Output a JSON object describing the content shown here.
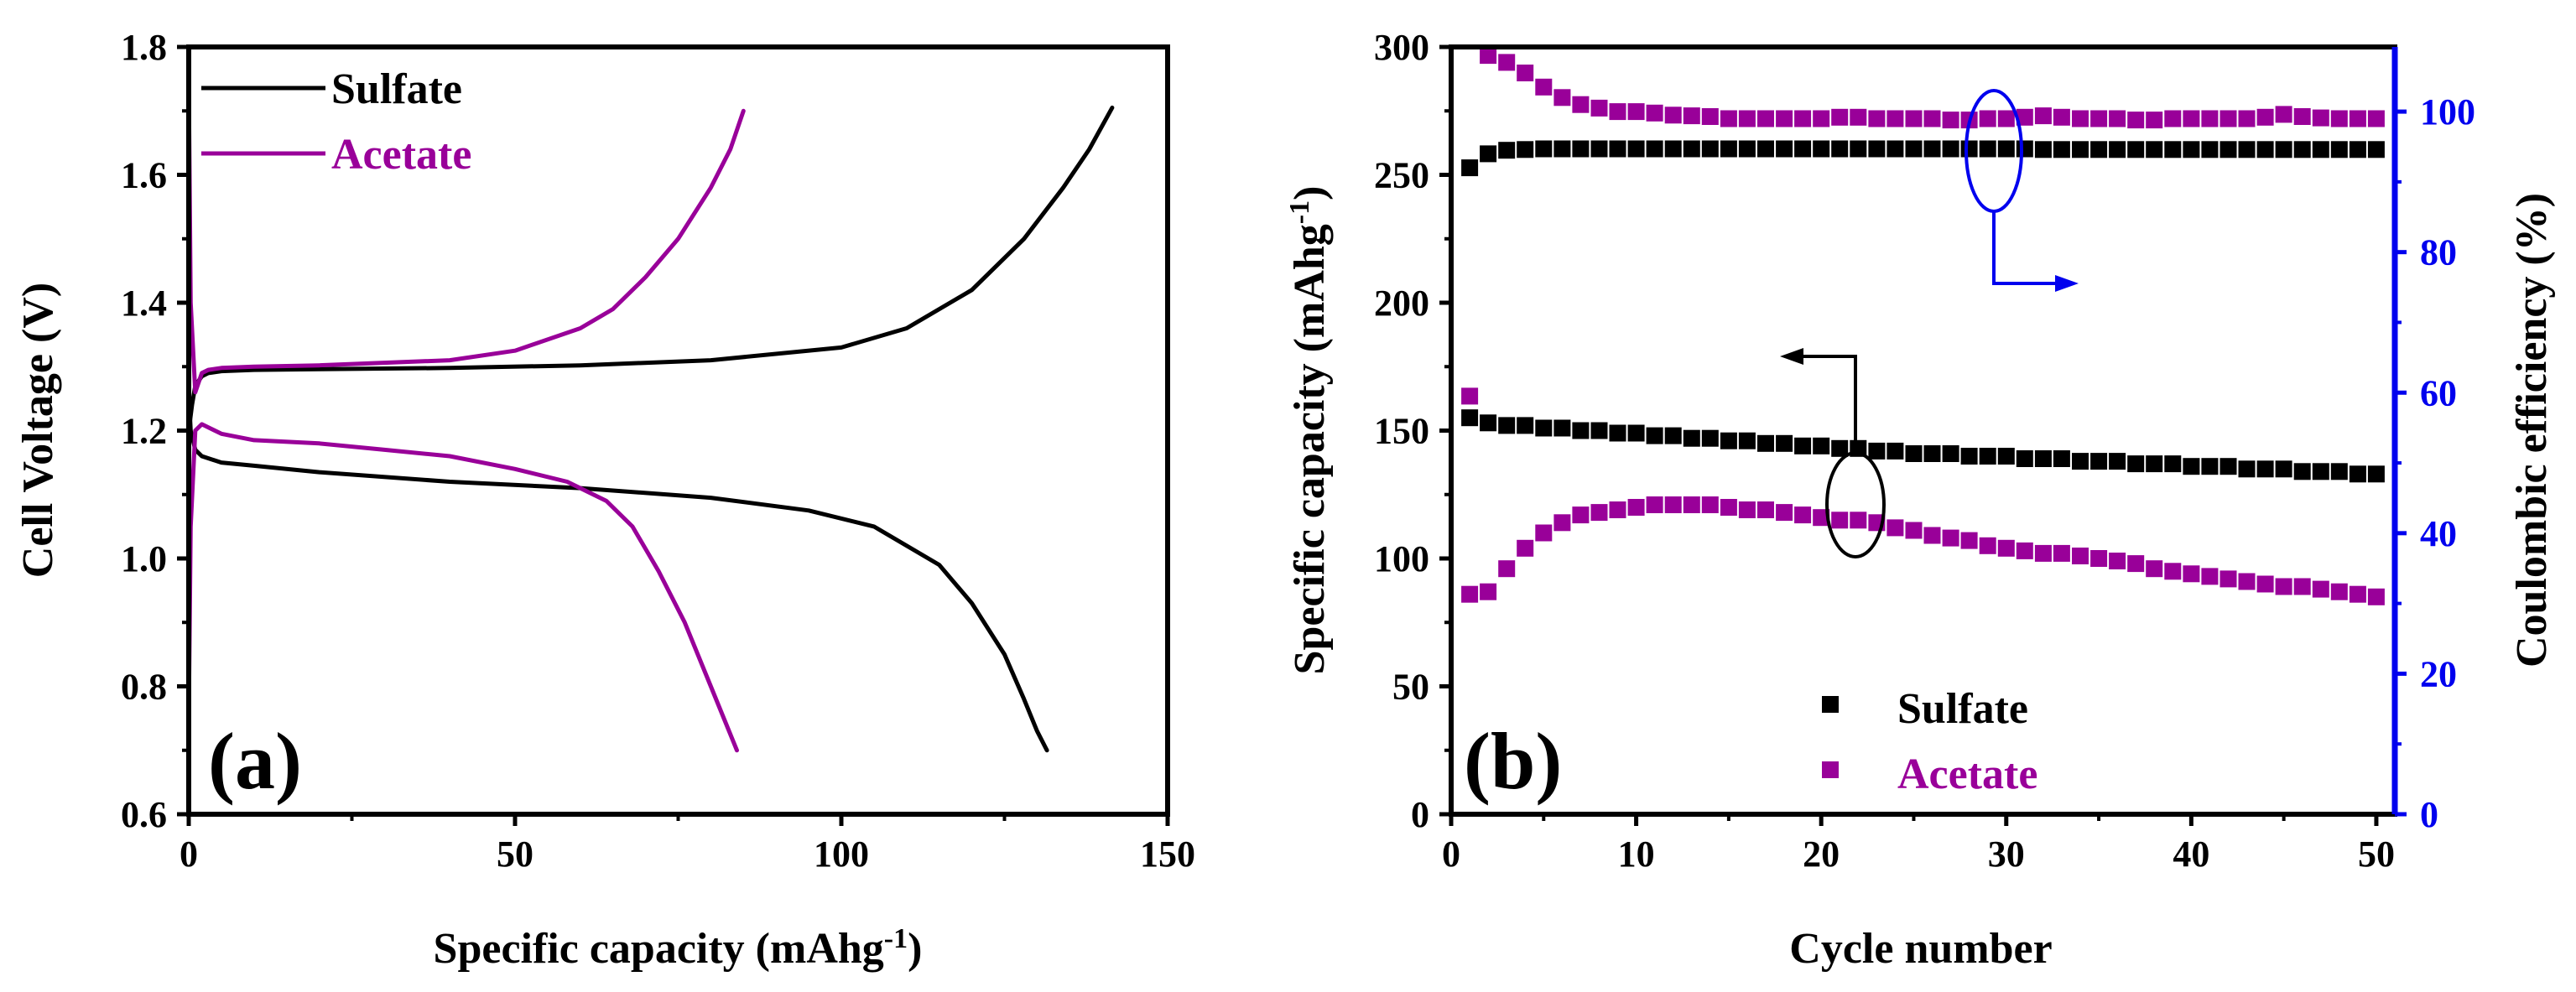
{
  "colors": {
    "sulfate": "#000000",
    "acetate": "#990099",
    "ce_axis": "#0000ee",
    "axis": "#000000"
  },
  "chart_data": [
    {
      "panel": "(a)",
      "type": "line",
      "xlabel": "Specific capacity (mAhg",
      "xlabel_sup": "-1",
      "xlabel_close": ")",
      "ylabel": "Cell Voltage (V)",
      "xlim": [
        0,
        150
      ],
      "ylim": [
        0.6,
        1.8
      ],
      "xticks": [
        "0",
        "50",
        "100",
        "150"
      ],
      "yticks": [
        "0.6",
        "0.8",
        "1.0",
        "1.2",
        "1.4",
        "1.6",
        "1.8"
      ],
      "legend": {
        "position": "top-left",
        "entries": [
          "Sulfate",
          "Acetate"
        ]
      },
      "series": [
        {
          "name": "Sulfate",
          "curve": "charge",
          "x": [
            0,
            0.5,
            1,
            2,
            3,
            5,
            10,
            20,
            40,
            60,
            80,
            100,
            110,
            120,
            128,
            134,
            138,
            141.5
          ],
          "y": [
            1.2,
            1.24,
            1.27,
            1.285,
            1.29,
            1.293,
            1.295,
            1.296,
            1.298,
            1.302,
            1.31,
            1.33,
            1.36,
            1.42,
            1.5,
            1.58,
            1.64,
            1.705
          ]
        },
        {
          "name": "Sulfate",
          "curve": "discharge",
          "x": [
            0,
            0.3,
            1,
            2,
            5,
            10,
            20,
            40,
            60,
            80,
            95,
            105,
            115,
            120,
            125,
            128,
            130,
            131.5
          ],
          "y": [
            1.26,
            1.2,
            1.17,
            1.16,
            1.15,
            1.145,
            1.135,
            1.12,
            1.11,
            1.095,
            1.075,
            1.05,
            0.99,
            0.93,
            0.85,
            0.78,
            0.73,
            0.7
          ]
        },
        {
          "name": "Acetate",
          "curve": "charge",
          "x": [
            0,
            0.3,
            1,
            2,
            3,
            5,
            10,
            20,
            40,
            50,
            60,
            65,
            70,
            75,
            80,
            83,
            85
          ],
          "y": [
            1.75,
            1.4,
            1.26,
            1.29,
            1.295,
            1.298,
            1.3,
            1.302,
            1.31,
            1.325,
            1.36,
            1.39,
            1.44,
            1.5,
            1.58,
            1.64,
            1.7
          ]
        },
        {
          "name": "Acetate",
          "curve": "discharge",
          "x": [
            0,
            0.3,
            1,
            2,
            5,
            10,
            20,
            30,
            40,
            50,
            58,
            64,
            68,
            72,
            76,
            80,
            84
          ],
          "y": [
            0.75,
            1.05,
            1.2,
            1.21,
            1.195,
            1.185,
            1.18,
            1.17,
            1.16,
            1.14,
            1.12,
            1.09,
            1.05,
            0.98,
            0.9,
            0.8,
            0.7
          ]
        }
      ]
    },
    {
      "panel": "(b)",
      "type": "scatter",
      "xlabel": "Cycle number",
      "ylabel": "Specific capacity (mAhg",
      "ylabel_sup": "-1",
      "ylabel_close": ")",
      "y2label": "Coulombic efficiency (%)",
      "xlim": [
        0,
        51
      ],
      "ylim": [
        0,
        300
      ],
      "y2lim": [
        0,
        109.2
      ],
      "xticks": [
        "0",
        "10",
        "20",
        "30",
        "40",
        "50"
      ],
      "yticks": [
        "0",
        "50",
        "100",
        "150",
        "200",
        "250",
        "300"
      ],
      "y2ticks": [
        "0",
        "20",
        "40",
        "60",
        "80",
        "100"
      ],
      "legend": {
        "position": "bottom-center",
        "entries": [
          "Sulfate",
          "Acetate"
        ]
      },
      "series": [
        {
          "name": "Sulfate capacity",
          "axis": "left",
          "x": [
            1,
            2,
            3,
            4,
            5,
            6,
            7,
            8,
            9,
            10,
            11,
            12,
            13,
            14,
            15,
            16,
            17,
            18,
            19,
            20,
            21,
            22,
            23,
            24,
            25,
            26,
            27,
            28,
            29,
            30,
            31,
            32,
            33,
            34,
            35,
            36,
            37,
            38,
            39,
            40,
            41,
            42,
            43,
            44,
            45,
            46,
            47,
            48,
            49,
            50
          ],
          "y": [
            155,
            153,
            152,
            152,
            151,
            151,
            150,
            150,
            149,
            149,
            148,
            148,
            147,
            147,
            146,
            146,
            145,
            145,
            144,
            144,
            143,
            143,
            142,
            142,
            141,
            141,
            141,
            140,
            140,
            140,
            139,
            139,
            139,
            138,
            138,
            138,
            137,
            137,
            137,
            136,
            136,
            136,
            135,
            135,
            135,
            134,
            134,
            134,
            133,
            133
          ]
        },
        {
          "name": "Acetate capacity",
          "axis": "left",
          "x": [
            1,
            2,
            3,
            4,
            5,
            6,
            7,
            8,
            9,
            10,
            11,
            12,
            13,
            14,
            15,
            16,
            17,
            18,
            19,
            20,
            21,
            22,
            23,
            24,
            25,
            26,
            27,
            28,
            29,
            30,
            31,
            32,
            33,
            34,
            35,
            36,
            37,
            38,
            39,
            40,
            41,
            42,
            43,
            44,
            45,
            46,
            47,
            48,
            49,
            50
          ],
          "y": [
            86,
            87,
            96,
            104,
            110,
            114,
            117,
            118,
            119,
            120,
            121,
            121,
            121,
            121,
            120,
            119,
            119,
            118,
            117,
            116,
            115,
            115,
            114,
            112,
            111,
            109,
            108,
            107,
            105,
            104,
            103,
            102,
            102,
            101,
            100,
            99,
            98,
            96,
            95,
            94,
            93,
            92,
            91,
            90,
            89,
            89,
            88,
            87,
            86,
            85
          ]
        },
        {
          "name": "Sulfate CE",
          "axis": "right",
          "x": [
            1,
            2,
            3,
            4,
            5,
            6,
            7,
            8,
            9,
            10,
            11,
            12,
            13,
            14,
            15,
            16,
            17,
            18,
            19,
            20,
            21,
            22,
            23,
            24,
            25,
            26,
            27,
            28,
            29,
            30,
            31,
            32,
            33,
            34,
            35,
            36,
            37,
            38,
            39,
            40,
            41,
            42,
            43,
            44,
            45,
            46,
            47,
            48,
            49,
            50
          ],
          "y": [
            92,
            94,
            94.5,
            94.6,
            94.7,
            94.7,
            94.7,
            94.7,
            94.7,
            94.7,
            94.7,
            94.7,
            94.7,
            94.7,
            94.7,
            94.7,
            94.7,
            94.7,
            94.7,
            94.7,
            94.7,
            94.7,
            94.7,
            94.7,
            94.7,
            94.7,
            94.7,
            94.7,
            94.7,
            94.7,
            94.7,
            94.6,
            94.6,
            94.6,
            94.6,
            94.6,
            94.6,
            94.6,
            94.6,
            94.6,
            94.6,
            94.6,
            94.6,
            94.6,
            94.6,
            94.6,
            94.6,
            94.6,
            94.6,
            94.6
          ]
        },
        {
          "name": "Acetate CE",
          "axis": "right",
          "x": [
            1,
            2,
            3,
            4,
            5,
            6,
            7,
            8,
            9,
            10,
            11,
            12,
            13,
            14,
            15,
            16,
            17,
            18,
            19,
            20,
            21,
            22,
            23,
            24,
            25,
            26,
            27,
            28,
            29,
            30,
            31,
            32,
            33,
            34,
            35,
            36,
            37,
            38,
            39,
            40,
            41,
            42,
            43,
            44,
            45,
            46,
            47,
            48,
            49,
            50
          ],
          "y": [
            59.5,
            108,
            107,
            105.5,
            103.5,
            102,
            101,
            100.5,
            100,
            100,
            99.8,
            99.5,
            99.4,
            99.3,
            99,
            99,
            99,
            99,
            99,
            99,
            99.2,
            99.2,
            99,
            99,
            99,
            99,
            98.8,
            98.8,
            99,
            99,
            99.2,
            99.4,
            99.2,
            99,
            99,
            99,
            98.8,
            98.8,
            99,
            99,
            99,
            99,
            99,
            99.2,
            99.6,
            99.3,
            99.1,
            99,
            99,
            99
          ]
        }
      ]
    }
  ]
}
